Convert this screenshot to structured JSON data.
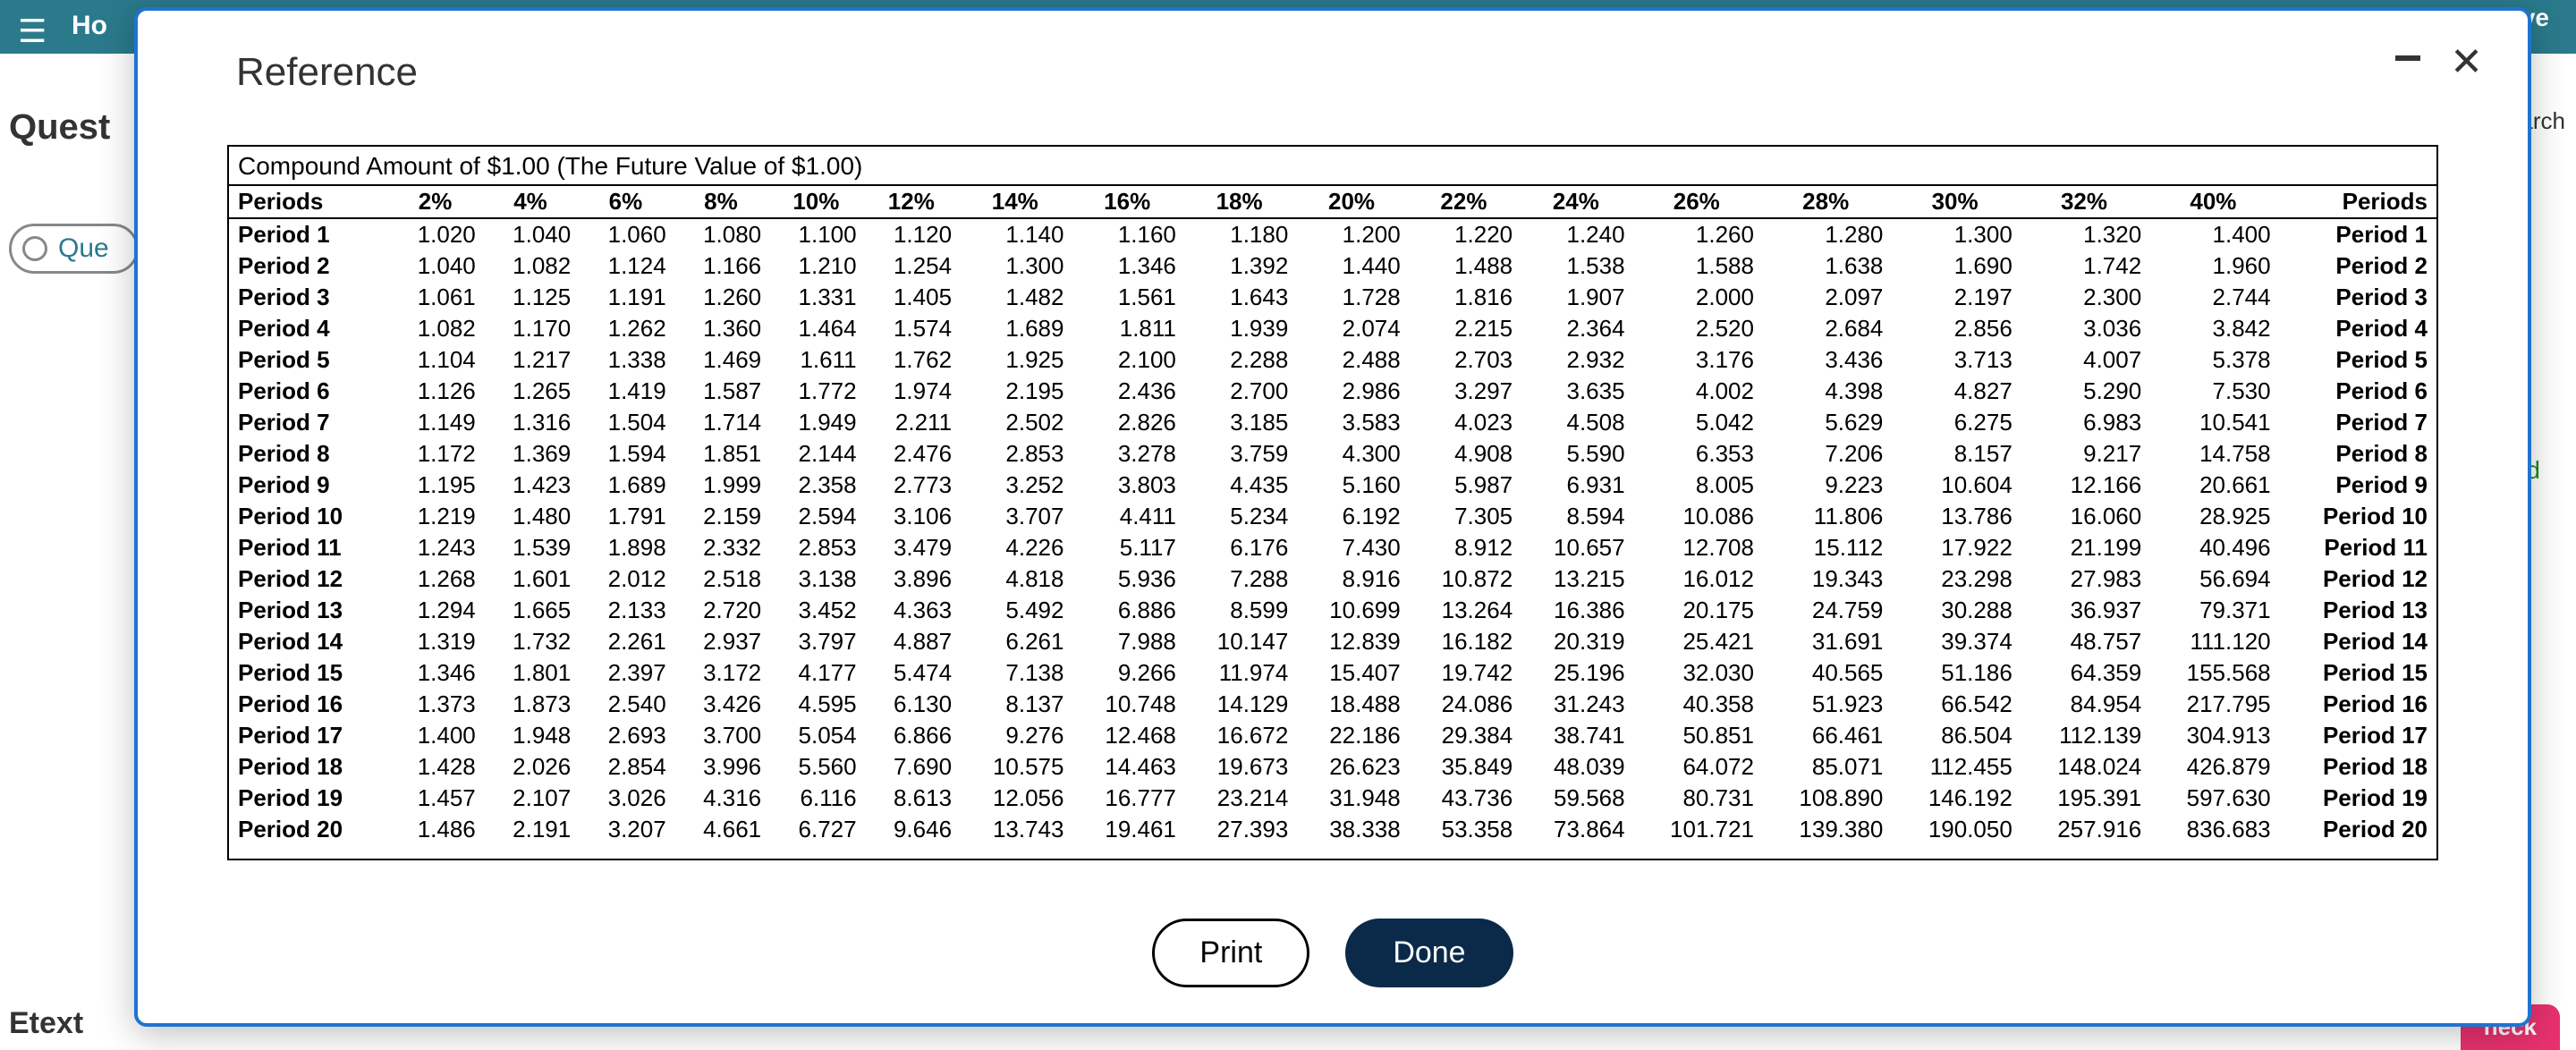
{
  "background": {
    "home_fragment": "Ho",
    "save_fragment": "save",
    "quest_fragment": "Quest",
    "que_fragment": "Que",
    "research_fragment": "Research",
    "rounded_fragment": "rounded",
    "etext_fragment": "Etext",
    "check_fragment": "heck"
  },
  "modal": {
    "title": "Reference",
    "caption": "Compound Amount of $1.00 (The Future Value of $1.00)",
    "print_label": "Print",
    "done_label": "Done",
    "header_periods_label": "Periods",
    "rate_headers": [
      "2%",
      "4%",
      "6%",
      "8%",
      "10%",
      "12%",
      "14%",
      "16%",
      "18%",
      "20%",
      "22%",
      "24%",
      "26%",
      "28%",
      "30%",
      "32%",
      "40%"
    ],
    "rows": [
      {
        "label": "Period 1",
        "values": [
          "1.020",
          "1.040",
          "1.060",
          "1.080",
          "1.100",
          "1.120",
          "1.140",
          "1.160",
          "1.180",
          "1.200",
          "1.220",
          "1.240",
          "1.260",
          "1.280",
          "1.300",
          "1.320",
          "1.400"
        ]
      },
      {
        "label": "Period 2",
        "values": [
          "1.040",
          "1.082",
          "1.124",
          "1.166",
          "1.210",
          "1.254",
          "1.300",
          "1.346",
          "1.392",
          "1.440",
          "1.488",
          "1.538",
          "1.588",
          "1.638",
          "1.690",
          "1.742",
          "1.960"
        ]
      },
      {
        "label": "Period 3",
        "values": [
          "1.061",
          "1.125",
          "1.191",
          "1.260",
          "1.331",
          "1.405",
          "1.482",
          "1.561",
          "1.643",
          "1.728",
          "1.816",
          "1.907",
          "2.000",
          "2.097",
          "2.197",
          "2.300",
          "2.744"
        ]
      },
      {
        "label": "Period 4",
        "values": [
          "1.082",
          "1.170",
          "1.262",
          "1.360",
          "1.464",
          "1.574",
          "1.689",
          "1.811",
          "1.939",
          "2.074",
          "2.215",
          "2.364",
          "2.520",
          "2.684",
          "2.856",
          "3.036",
          "3.842"
        ]
      },
      {
        "label": "Period 5",
        "values": [
          "1.104",
          "1.217",
          "1.338",
          "1.469",
          "1.611",
          "1.762",
          "1.925",
          "2.100",
          "2.288",
          "2.488",
          "2.703",
          "2.932",
          "3.176",
          "3.436",
          "3.713",
          "4.007",
          "5.378"
        ]
      },
      {
        "label": "Period 6",
        "values": [
          "1.126",
          "1.265",
          "1.419",
          "1.587",
          "1.772",
          "1.974",
          "2.195",
          "2.436",
          "2.700",
          "2.986",
          "3.297",
          "3.635",
          "4.002",
          "4.398",
          "4.827",
          "5.290",
          "7.530"
        ]
      },
      {
        "label": "Period 7",
        "values": [
          "1.149",
          "1.316",
          "1.504",
          "1.714",
          "1.949",
          "2.211",
          "2.502",
          "2.826",
          "3.185",
          "3.583",
          "4.023",
          "4.508",
          "5.042",
          "5.629",
          "6.275",
          "6.983",
          "10.541"
        ]
      },
      {
        "label": "Period 8",
        "values": [
          "1.172",
          "1.369",
          "1.594",
          "1.851",
          "2.144",
          "2.476",
          "2.853",
          "3.278",
          "3.759",
          "4.300",
          "4.908",
          "5.590",
          "6.353",
          "7.206",
          "8.157",
          "9.217",
          "14.758"
        ]
      },
      {
        "label": "Period 9",
        "values": [
          "1.195",
          "1.423",
          "1.689",
          "1.999",
          "2.358",
          "2.773",
          "3.252",
          "3.803",
          "4.435",
          "5.160",
          "5.987",
          "6.931",
          "8.005",
          "9.223",
          "10.604",
          "12.166",
          "20.661"
        ]
      },
      {
        "label": "Period 10",
        "values": [
          "1.219",
          "1.480",
          "1.791",
          "2.159",
          "2.594",
          "3.106",
          "3.707",
          "4.411",
          "5.234",
          "6.192",
          "7.305",
          "8.594",
          "10.086",
          "11.806",
          "13.786",
          "16.060",
          "28.925"
        ]
      },
      {
        "label": "Period 11",
        "values": [
          "1.243",
          "1.539",
          "1.898",
          "2.332",
          "2.853",
          "3.479",
          "4.226",
          "5.117",
          "6.176",
          "7.430",
          "8.912",
          "10.657",
          "12.708",
          "15.112",
          "17.922",
          "21.199",
          "40.496"
        ]
      },
      {
        "label": "Period 12",
        "values": [
          "1.268",
          "1.601",
          "2.012",
          "2.518",
          "3.138",
          "3.896",
          "4.818",
          "5.936",
          "7.288",
          "8.916",
          "10.872",
          "13.215",
          "16.012",
          "19.343",
          "23.298",
          "27.983",
          "56.694"
        ]
      },
      {
        "label": "Period 13",
        "values": [
          "1.294",
          "1.665",
          "2.133",
          "2.720",
          "3.452",
          "4.363",
          "5.492",
          "6.886",
          "8.599",
          "10.699",
          "13.264",
          "16.386",
          "20.175",
          "24.759",
          "30.288",
          "36.937",
          "79.371"
        ]
      },
      {
        "label": "Period 14",
        "values": [
          "1.319",
          "1.732",
          "2.261",
          "2.937",
          "3.797",
          "4.887",
          "6.261",
          "7.988",
          "10.147",
          "12.839",
          "16.182",
          "20.319",
          "25.421",
          "31.691",
          "39.374",
          "48.757",
          "111.120"
        ]
      },
      {
        "label": "Period 15",
        "values": [
          "1.346",
          "1.801",
          "2.397",
          "3.172",
          "4.177",
          "5.474",
          "7.138",
          "9.266",
          "11.974",
          "15.407",
          "19.742",
          "25.196",
          "32.030",
          "40.565",
          "51.186",
          "64.359",
          "155.568"
        ]
      },
      {
        "label": "Period 16",
        "values": [
          "1.373",
          "1.873",
          "2.540",
          "3.426",
          "4.595",
          "6.130",
          "8.137",
          "10.748",
          "14.129",
          "18.488",
          "24.086",
          "31.243",
          "40.358",
          "51.923",
          "66.542",
          "84.954",
          "217.795"
        ]
      },
      {
        "label": "Period 17",
        "values": [
          "1.400",
          "1.948",
          "2.693",
          "3.700",
          "5.054",
          "6.866",
          "9.276",
          "12.468",
          "16.672",
          "22.186",
          "29.384",
          "38.741",
          "50.851",
          "66.461",
          "86.504",
          "112.139",
          "304.913"
        ]
      },
      {
        "label": "Period 18",
        "values": [
          "1.428",
          "2.026",
          "2.854",
          "3.996",
          "5.560",
          "7.690",
          "10.575",
          "14.463",
          "19.673",
          "26.623",
          "35.849",
          "48.039",
          "64.072",
          "85.071",
          "112.455",
          "148.024",
          "426.879"
        ]
      },
      {
        "label": "Period 19",
        "values": [
          "1.457",
          "2.107",
          "3.026",
          "4.316",
          "6.116",
          "8.613",
          "12.056",
          "16.777",
          "23.214",
          "31.948",
          "43.736",
          "59.568",
          "80.731",
          "108.890",
          "146.192",
          "195.391",
          "597.630"
        ]
      },
      {
        "label": "Period 20",
        "values": [
          "1.486",
          "2.191",
          "3.207",
          "4.661",
          "6.727",
          "9.646",
          "13.743",
          "19.461",
          "27.393",
          "38.338",
          "53.358",
          "73.864",
          "101.721",
          "139.380",
          "190.050",
          "257.916",
          "836.683"
        ]
      }
    ]
  }
}
